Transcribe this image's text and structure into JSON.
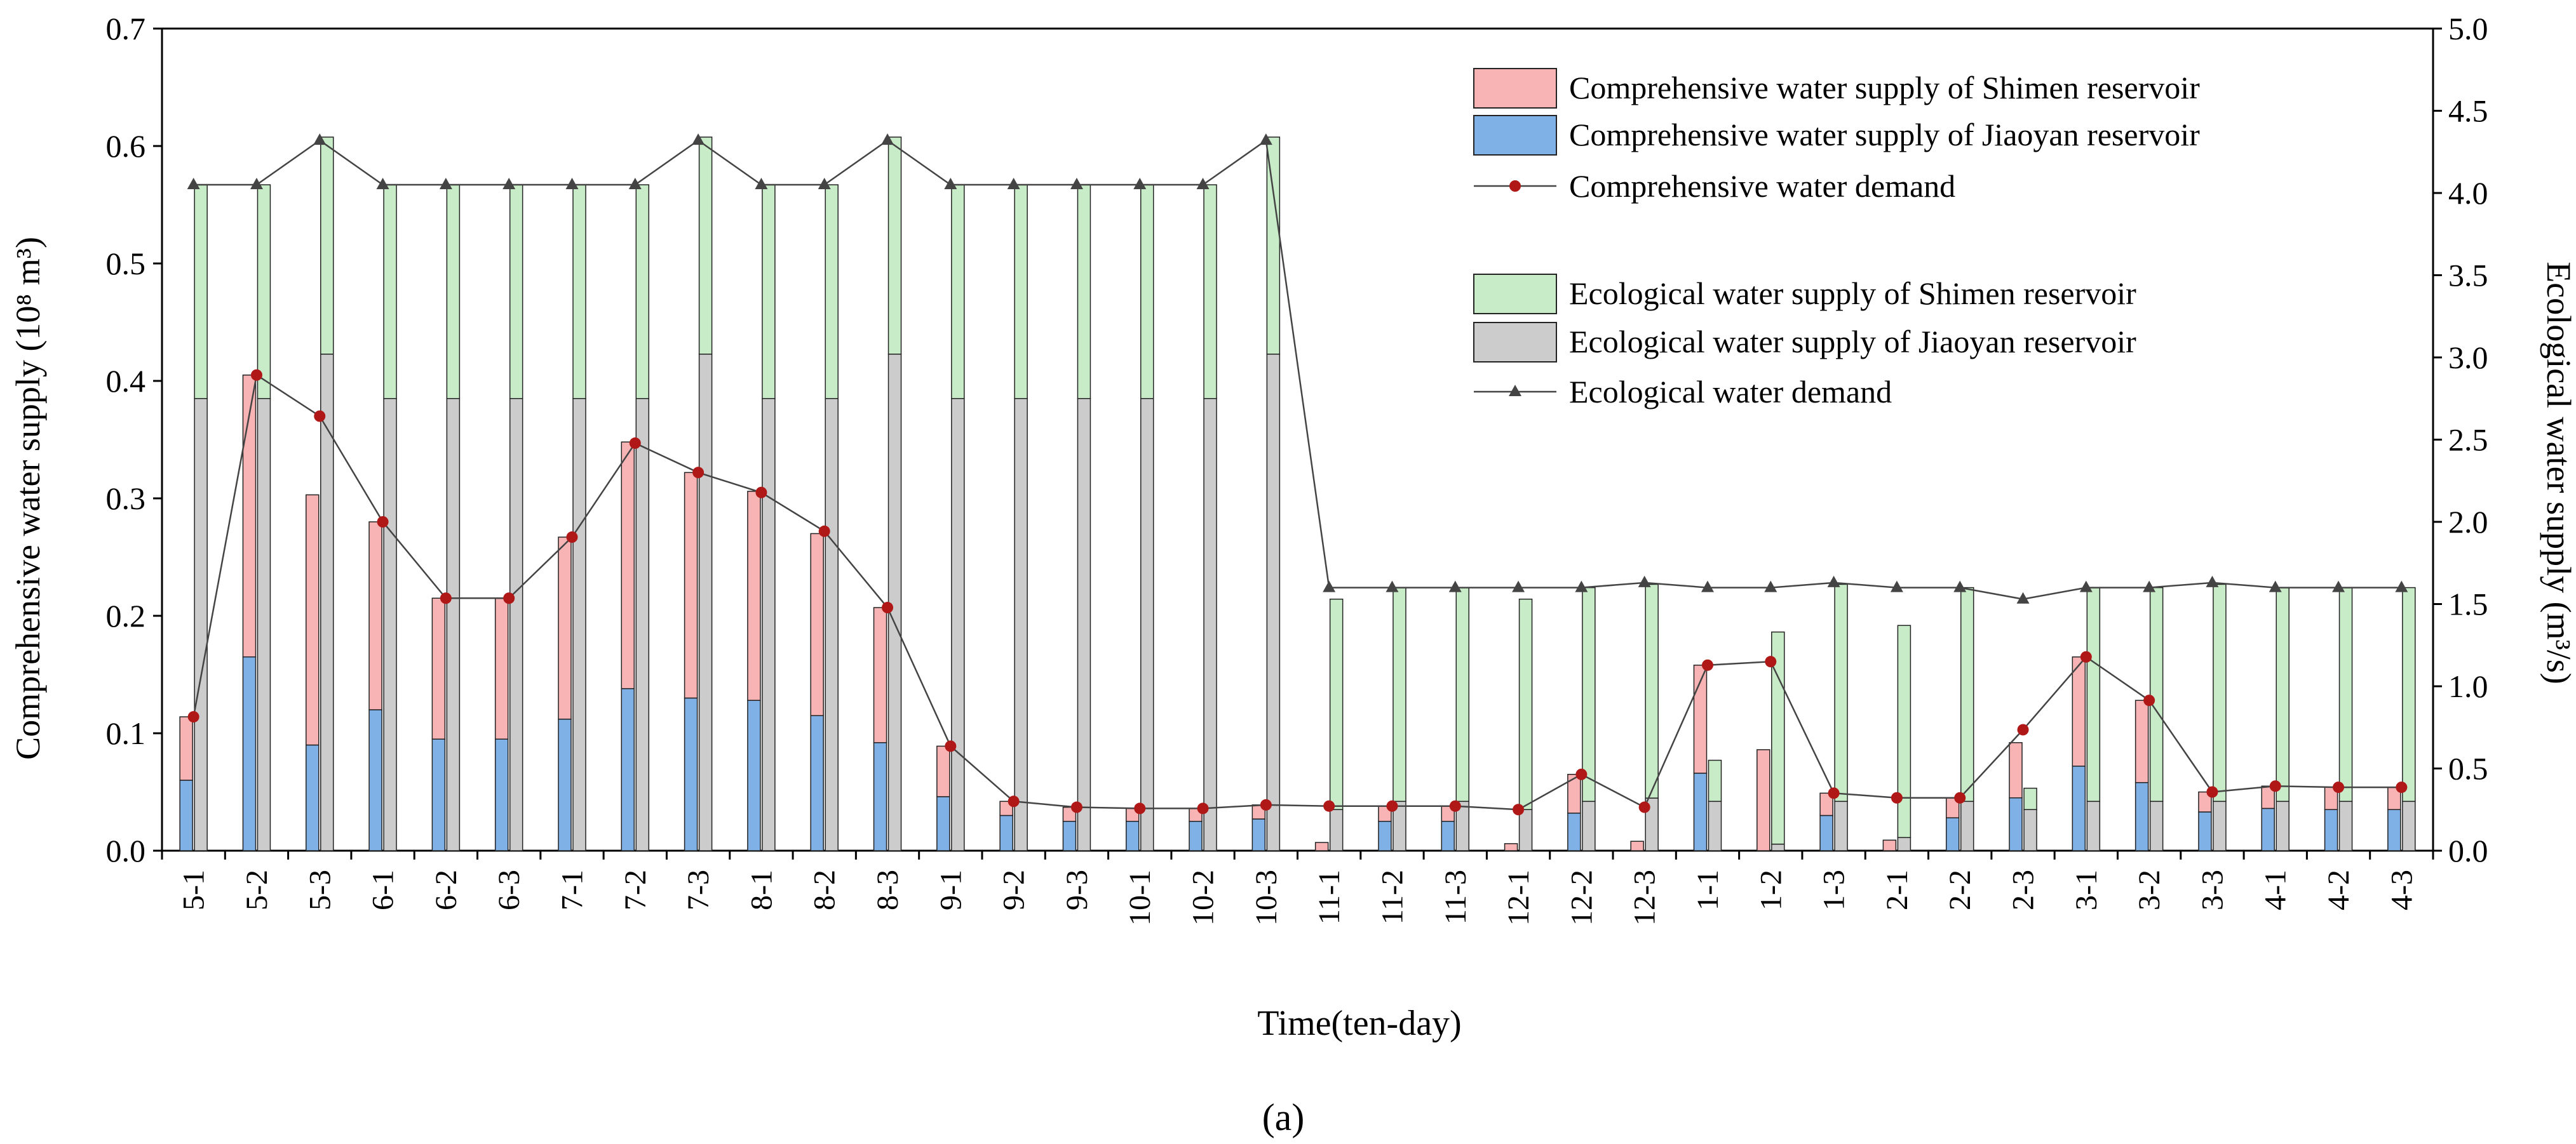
{
  "chart_data": {
    "type": "bar",
    "subtype": "stacked-grouped-bar-with-lines",
    "panel_label": "(a)",
    "xlabel": "Time(ten-day)",
    "ylabel_left": "Comprehensive water supply (10⁸ m³)",
    "ylabel_right": "Ecological water supply (m³/s)",
    "ylim_left": [
      0,
      0.7
    ],
    "ylim_right": [
      0,
      5.0
    ],
    "yticks_left": [
      "0.0",
      "0.1",
      "0.2",
      "0.3",
      "0.4",
      "0.5",
      "0.6",
      "0.7"
    ],
    "yticks_right": [
      "0.0",
      "0.5",
      "1.0",
      "1.5",
      "2.0",
      "2.5",
      "3.0",
      "3.5",
      "4.0",
      "4.5",
      "5.0"
    ],
    "categories": [
      "5-1",
      "5-2",
      "5-3",
      "6-1",
      "6-2",
      "6-3",
      "7-1",
      "7-2",
      "7-3",
      "8-1",
      "8-2",
      "8-3",
      "9-1",
      "9-2",
      "9-3",
      "10-1",
      "10-2",
      "10-3",
      "11-1",
      "11-2",
      "11-3",
      "12-1",
      "12-2",
      "12-3",
      "1-1",
      "1-2",
      "1-3",
      "2-1",
      "2-2",
      "2-3",
      "3-1",
      "3-2",
      "3-3",
      "4-1",
      "4-2",
      "4-3"
    ],
    "legend": {
      "comp_shimen": "Comprehensive water supply of Shimen reservoir",
      "comp_jiaoyan": "Comprehensive water supply of Jiaoyan reservoir",
      "comp_demand": "Comprehensive water demand",
      "eco_shimen": "Ecological water supply of Shimen reservoir",
      "eco_jiaoyan": "Ecological water supply of Jiaoyan reservoir",
      "eco_demand": "Ecological water demand"
    },
    "colors": {
      "comp_shimen": "#f8b4b4",
      "comp_jiaoyan": "#7fb0e6",
      "eco_shimen": "#c8ecc8",
      "eco_jiaoyan": "#cccccc",
      "comp_demand_line": "#444444",
      "comp_demand_marker": "#b01818",
      "eco_demand_line": "#444444",
      "eco_demand_marker": "#444444"
    },
    "series": [
      {
        "name": "Comprehensive water supply of Jiaoyan reservoir",
        "key": "comp_jiaoyan",
        "axis": "left",
        "values": [
          0.06,
          0.165,
          0.09,
          0.12,
          0.095,
          0.095,
          0.112,
          0.138,
          0.13,
          0.128,
          0.115,
          0.092,
          0.046,
          0.03,
          0.025,
          0.025,
          0.025,
          0.027,
          0.0,
          0.025,
          0.025,
          0.0,
          0.032,
          0.0,
          0.066,
          0.0,
          0.03,
          0.0,
          0.028,
          0.045,
          0.072,
          0.058,
          0.033,
          0.036,
          0.035,
          0.035
        ]
      },
      {
        "name": "Comprehensive water supply of Shimen reservoir",
        "key": "comp_shimen",
        "axis": "left",
        "values": [
          0.054,
          0.24,
          0.213,
          0.16,
          0.12,
          0.12,
          0.155,
          0.21,
          0.192,
          0.178,
          0.155,
          0.115,
          0.043,
          0.012,
          0.012,
          0.011,
          0.011,
          0.012,
          0.007,
          0.013,
          0.013,
          0.006,
          0.033,
          0.008,
          0.092,
          0.086,
          0.019,
          0.009,
          0.017,
          0.047,
          0.093,
          0.07,
          0.017,
          0.019,
          0.019,
          0.019
        ]
      },
      {
        "name": "Ecological water supply of Jiaoyan reservoir",
        "key": "eco_jiaoyan",
        "axis": "right",
        "values": [
          2.75,
          2.75,
          3.02,
          2.75,
          2.75,
          2.75,
          2.75,
          2.75,
          3.02,
          2.75,
          2.75,
          3.02,
          2.75,
          2.75,
          2.75,
          2.75,
          2.75,
          3.02,
          0.25,
          0.3,
          0.3,
          0.25,
          0.3,
          0.32,
          0.3,
          0.04,
          0.3,
          0.08,
          0.3,
          0.25,
          0.3,
          0.3,
          0.3,
          0.3,
          0.3,
          0.3
        ]
      },
      {
        "name": "Ecological water supply of Shimen reservoir",
        "key": "eco_shimen",
        "axis": "right",
        "values": [
          1.3,
          1.3,
          1.32,
          1.3,
          1.3,
          1.3,
          1.3,
          1.3,
          1.32,
          1.3,
          1.3,
          1.32,
          1.3,
          1.3,
          1.3,
          1.3,
          1.3,
          1.32,
          1.28,
          1.3,
          1.3,
          1.28,
          1.3,
          1.3,
          0.25,
          1.29,
          1.32,
          1.29,
          1.3,
          0.13,
          1.3,
          1.3,
          1.32,
          1.3,
          1.3,
          1.3
        ]
      },
      {
        "name": "Comprehensive water demand",
        "key": "comp_demand",
        "axis": "left",
        "type": "line",
        "values": [
          0.114,
          0.405,
          0.37,
          0.28,
          0.215,
          0.215,
          0.267,
          0.347,
          0.322,
          0.305,
          0.272,
          0.207,
          0.089,
          0.042,
          0.037,
          0.036,
          0.036,
          0.039,
          0.038,
          0.038,
          0.038,
          0.035,
          0.065,
          0.037,
          0.158,
          0.161,
          0.049,
          0.045,
          0.045,
          0.103,
          0.165,
          0.128,
          0.05,
          0.055,
          0.054,
          0.054
        ]
      },
      {
        "name": "Ecological water demand",
        "key": "eco_demand",
        "axis": "right",
        "type": "line",
        "values": [
          4.05,
          4.05,
          4.32,
          4.05,
          4.05,
          4.05,
          4.05,
          4.05,
          4.32,
          4.05,
          4.05,
          4.32,
          4.05,
          4.05,
          4.05,
          4.05,
          4.05,
          4.32,
          1.6,
          1.6,
          1.6,
          1.6,
          1.6,
          1.63,
          1.6,
          1.6,
          1.63,
          1.6,
          1.6,
          1.53,
          1.6,
          1.6,
          1.63,
          1.6,
          1.6,
          1.6
        ]
      }
    ]
  }
}
